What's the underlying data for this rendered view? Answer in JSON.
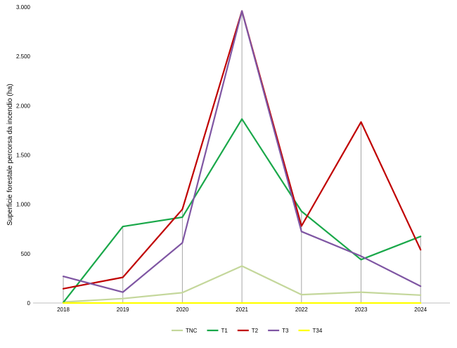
{
  "chart_data": {
    "type": "line",
    "title": "",
    "xlabel": "",
    "ylabel": "Superficie forestale percorsa da incendio (ha)",
    "x": [
      "2018",
      "2019",
      "2020",
      "2021",
      "2022",
      "2023",
      "2024"
    ],
    "ylim": [
      0,
      3000
    ],
    "y_ticks": [
      0,
      500,
      1000,
      1500,
      2000,
      2500,
      3000
    ],
    "y_tick_labels": [
      "0",
      "500",
      "1.000",
      "1.500",
      "2.000",
      "2.500",
      "3.000"
    ],
    "vertical_drop_lines": true,
    "legend_position": "bottom",
    "series": [
      {
        "name": "TNC",
        "color": "#c4d79b",
        "values": [
          10,
          45,
          105,
          375,
          85,
          110,
          80
        ]
      },
      {
        "name": "T1",
        "color": "#1aa84a",
        "values": [
          5,
          775,
          870,
          1865,
          930,
          440,
          675
        ]
      },
      {
        "name": "T2",
        "color": "#c00000",
        "values": [
          145,
          260,
          950,
          2960,
          780,
          1835,
          540
        ]
      },
      {
        "name": "T3",
        "color": "#7f56a3",
        "values": [
          270,
          110,
          610,
          2960,
          725,
          475,
          170
        ]
      },
      {
        "name": "T34",
        "color": "#ffff00",
        "values": [
          0,
          0,
          0,
          0,
          0,
          0,
          0
        ]
      }
    ]
  }
}
